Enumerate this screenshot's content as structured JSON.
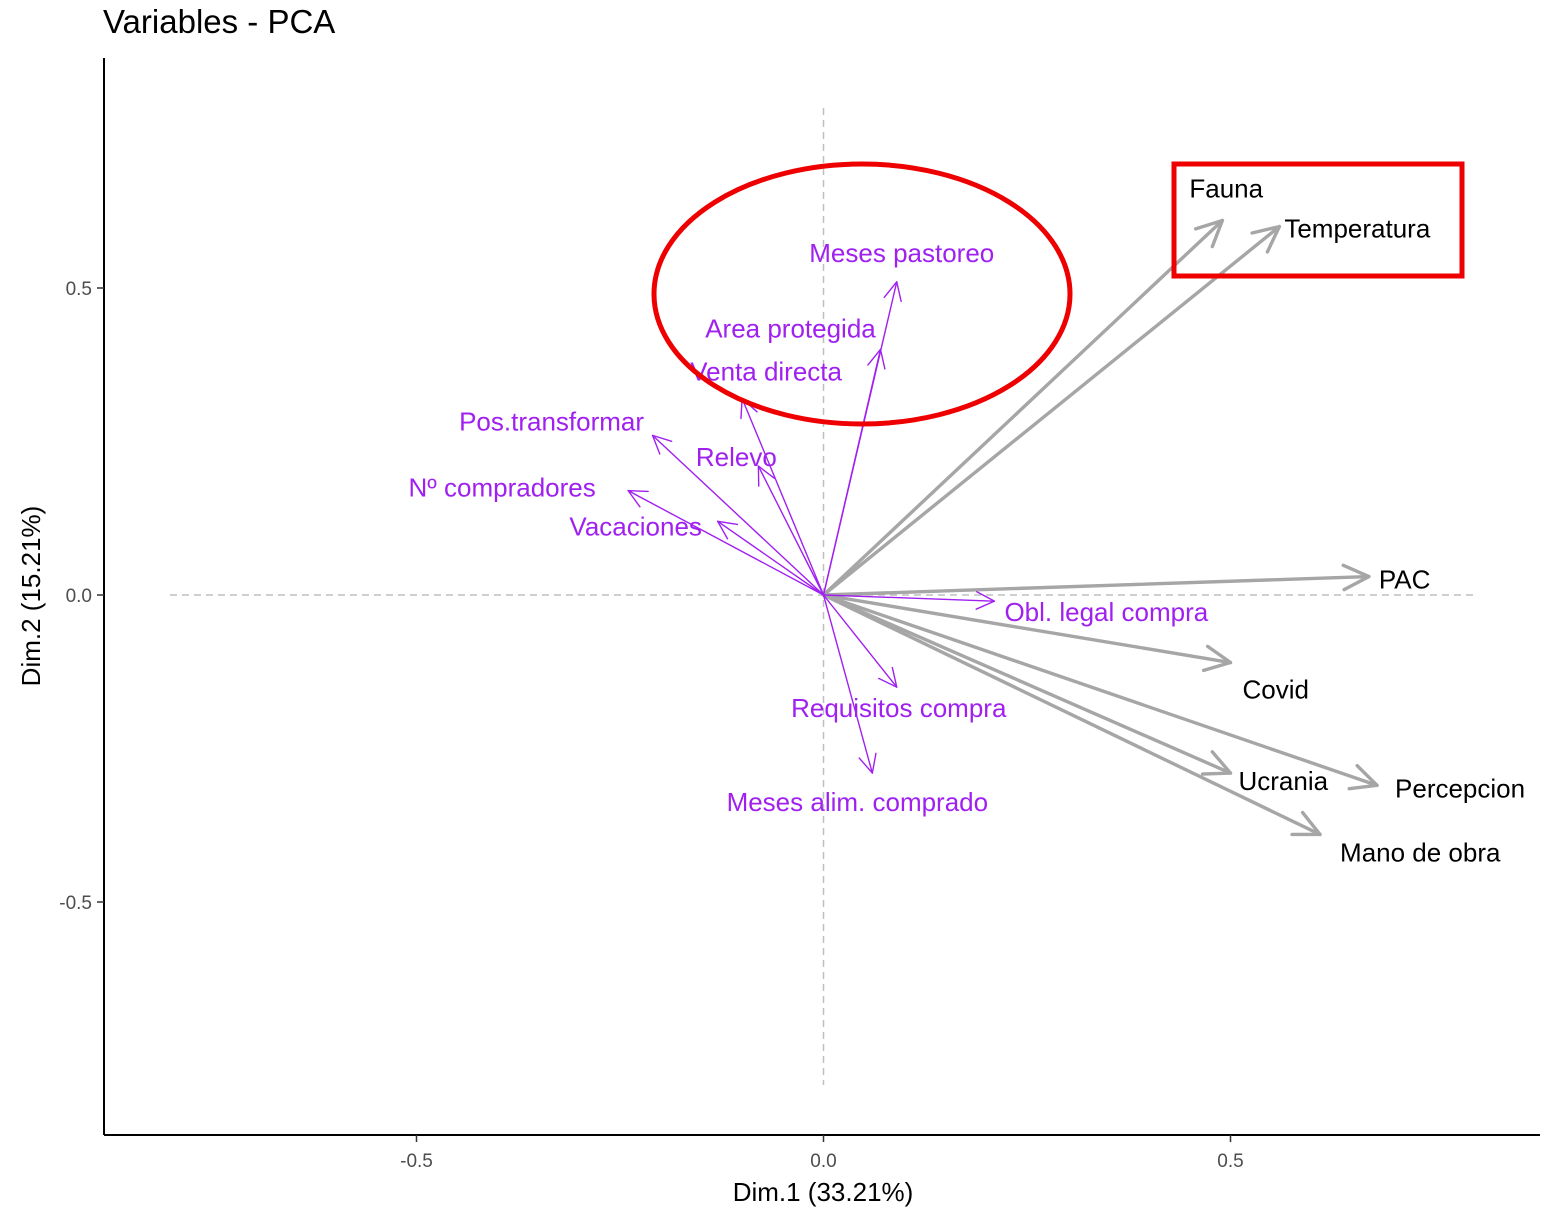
{
  "chart_data": {
    "type": "scatter",
    "subtype": "pca-variable-correlation-arrows",
    "title": "Variables - PCA",
    "xlabel": "Dim.1 (33.21%)",
    "ylabel": "Dim.2 (15.21%)",
    "xlim": [
      -0.88,
      0.88
    ],
    "ylim": [
      -0.88,
      0.88
    ],
    "xticks": [
      -0.5,
      0.0,
      0.5
    ],
    "yticks": [
      -0.5,
      0.0,
      0.5
    ],
    "xtick_labels": [
      "-0.5",
      "0.0",
      "0.5"
    ],
    "ytick_labels": [
      "-0.5",
      "0.0",
      "0.5"
    ],
    "grid": false,
    "reference_lines": "dashed lines at x=0 and y=0",
    "colors": {
      "gray_series": "#a6a6a6",
      "purple_series": "#a020f0",
      "highlight": "#ee0000",
      "axis": "#000000",
      "reference": "#bfbfbf"
    },
    "series": [
      {
        "color": "#a6a6a6",
        "label_color": "#000000",
        "variables": [
          {
            "label": "Fauna",
            "x": 0.49,
            "y": 0.61
          },
          {
            "label": "Temperatura",
            "x": 0.56,
            "y": 0.6
          },
          {
            "label": "PAC",
            "x": 0.67,
            "y": 0.03
          },
          {
            "label": "Covid",
            "x": 0.5,
            "y": -0.11
          },
          {
            "label": "Ucrania",
            "x": 0.5,
            "y": -0.29
          },
          {
            "label": "Percepcion",
            "x": 0.68,
            "y": -0.31
          },
          {
            "label": "Mano de obra",
            "x": 0.61,
            "y": -0.39
          }
        ]
      },
      {
        "color": "#a020f0",
        "label_color": "#a020f0",
        "variables": [
          {
            "label": "Meses pastoreo",
            "x": 0.09,
            "y": 0.51
          },
          {
            "label": "Area protegida",
            "x": 0.07,
            "y": 0.4
          },
          {
            "label": "Venta directa",
            "x": -0.1,
            "y": 0.32
          },
          {
            "label": "Pos.transformar",
            "x": -0.21,
            "y": 0.26
          },
          {
            "label": "Relevo",
            "x": -0.08,
            "y": 0.21
          },
          {
            "label": "Nº compradores",
            "x": -0.24,
            "y": 0.17
          },
          {
            "label": "Vacaciones",
            "x": -0.13,
            "y": 0.12
          },
          {
            "label": "Obl. legal compra",
            "x": 0.21,
            "y": -0.01
          },
          {
            "label": "Requisitos compra",
            "x": 0.09,
            "y": -0.15
          },
          {
            "label": "Meses alim. comprado",
            "x": 0.06,
            "y": -0.29
          }
        ]
      }
    ],
    "annotations": [
      {
        "shape": "ellipse",
        "color": "#ee0000",
        "encloses": [
          "Meses pastoreo",
          "Area protegida",
          "Venta directa"
        ]
      },
      {
        "shape": "rectangle",
        "color": "#ee0000",
        "encloses": [
          "Fauna",
          "Temperatura"
        ]
      }
    ]
  }
}
